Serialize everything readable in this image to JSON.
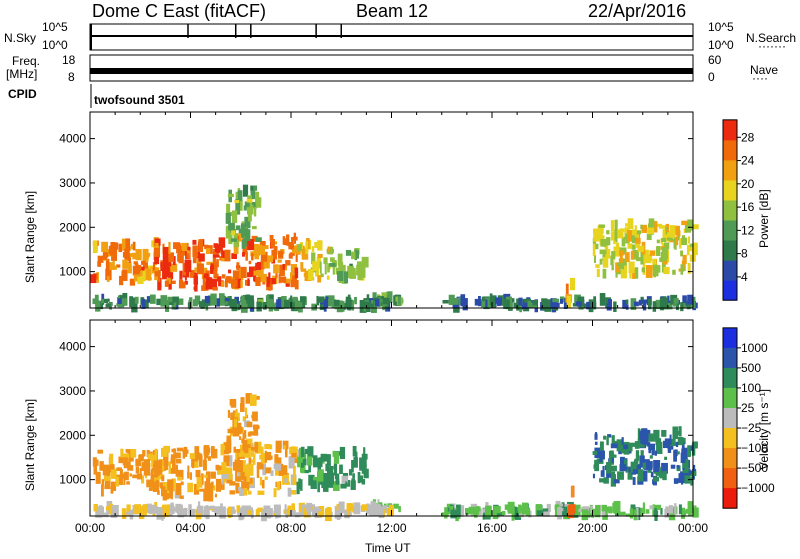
{
  "header": {
    "title": "Dome C East (fitACF)",
    "beam": "Beam 12",
    "date": "22/Apr/2016"
  },
  "nsky_panel": {
    "label": "N.Sky",
    "left_ticks": [
      "10^5",
      "10^0"
    ],
    "right_ticks": [
      "10^5",
      "10^0"
    ],
    "right_label": "N.Search",
    "right_label_marker": "·······"
  },
  "freq_panel": {
    "label_line1": "Freq.",
    "label_line2": "[MHz]",
    "left_ticks": [
      "18",
      "8"
    ],
    "right_ticks": [
      "60",
      "0"
    ],
    "right_label": "Nave",
    "right_label_marker": "····"
  },
  "cpid": {
    "label": "CPID",
    "value": "twofsound 3501"
  },
  "chart_data": [
    {
      "type": "heatmap",
      "name": "Power",
      "ylabel": "Slant Range [km]",
      "ylim": [
        180,
        4600
      ],
      "yticks": [
        "1000",
        "2000",
        "3000",
        "4000"
      ],
      "xlim_hours": [
        0,
        24
      ],
      "colorbar_label": "Power [dB]",
      "colorbar_ticks": [
        "4",
        "8",
        "12",
        "16",
        "20",
        "24",
        "28"
      ],
      "colorbar_colors": [
        "#1b2fe0",
        "#2b4aa8",
        "#2f7a4a",
        "#4f9a55",
        "#8fc040",
        "#e8d41e",
        "#f0a010",
        "#f06a0a",
        "#ec2a10"
      ],
      "colorbar_range": [
        0,
        31
      ],
      "echo_regions": [
        {
          "t0": 0.0,
          "t1": 2.6,
          "r0": 750,
          "r1": 1650,
          "level": 24
        },
        {
          "t0": 2.5,
          "t1": 5.2,
          "r0": 600,
          "r1": 1700,
          "level": 27
        },
        {
          "t0": 5.2,
          "t1": 8.2,
          "r0": 700,
          "r1": 1800,
          "level": 25
        },
        {
          "t0": 8.2,
          "t1": 9.5,
          "r0": 800,
          "r1": 1650,
          "level": 20
        },
        {
          "t0": 9.5,
          "t1": 10.9,
          "r0": 800,
          "r1": 1500,
          "level": 14
        },
        {
          "t0": 5.4,
          "t1": 6.6,
          "r0": 1600,
          "r1": 2900,
          "level": 14
        },
        {
          "t0": 11.0,
          "t1": 12.3,
          "r0": 330,
          "r1": 450,
          "level": 12
        },
        {
          "t0": 0.0,
          "t1": 12.0,
          "r0": 200,
          "r1": 380,
          "level": 10
        },
        {
          "t0": 14.0,
          "t1": 24.0,
          "r0": 200,
          "r1": 380,
          "level": 8
        },
        {
          "t0": 20.0,
          "t1": 24.0,
          "r0": 950,
          "r1": 2100,
          "level": 18
        },
        {
          "t0": 18.9,
          "t1": 19.2,
          "r0": 250,
          "r1": 750,
          "level": 22
        }
      ]
    },
    {
      "type": "heatmap",
      "name": "Velocity",
      "ylabel": "Slant Range [km]",
      "ylim": [
        180,
        4600
      ],
      "yticks": [
        "1000",
        "2000",
        "3000",
        "4000"
      ],
      "xticks": [
        "00:00",
        "04:00",
        "08:00",
        "12:00",
        "16:00",
        "20:00",
        "00:00"
      ],
      "xlabel": "Time UT",
      "xlim_hours": [
        0,
        24
      ],
      "colorbar_label": "Velocity [m s⁻¹]",
      "colorbar_ticks": [
        "1000",
        "500",
        "100",
        "25",
        "−25",
        "−100",
        "−500",
        "−1000"
      ],
      "colorbar_colors": [
        "#1c2fe0",
        "#2a55aa",
        "#2f8c5a",
        "#5cc04a",
        "#bcbcbc",
        "#f4c020",
        "#f09018",
        "#f06010",
        "#ec1c0c"
      ],
      "echo_regions": [
        {
          "t0": 0.0,
          "t1": 2.6,
          "r0": 750,
          "r1": 1650,
          "level": -150
        },
        {
          "t0": 2.5,
          "t1": 5.2,
          "r0": 600,
          "r1": 1700,
          "level": -120
        },
        {
          "t0": 5.2,
          "t1": 8.2,
          "r0": 700,
          "r1": 1800,
          "level": -60
        },
        {
          "t0": 8.2,
          "t1": 10.9,
          "r0": 800,
          "r1": 1650,
          "level": 80
        },
        {
          "t0": 5.4,
          "t1": 6.6,
          "r0": 1600,
          "r1": 2900,
          "level": -110
        },
        {
          "t0": 11.0,
          "t1": 12.3,
          "r0": 330,
          "r1": 450,
          "level": 30
        },
        {
          "t0": 0.0,
          "t1": 12.0,
          "r0": 200,
          "r1": 380,
          "level": -20
        },
        {
          "t0": 14.0,
          "t1": 24.0,
          "r0": 200,
          "r1": 380,
          "level": 40
        },
        {
          "t0": 20.0,
          "t1": 24.0,
          "r0": 950,
          "r1": 2100,
          "level": 300
        },
        {
          "t0": 18.9,
          "t1": 19.2,
          "r0": 250,
          "r1": 750,
          "level": -400
        }
      ]
    }
  ]
}
